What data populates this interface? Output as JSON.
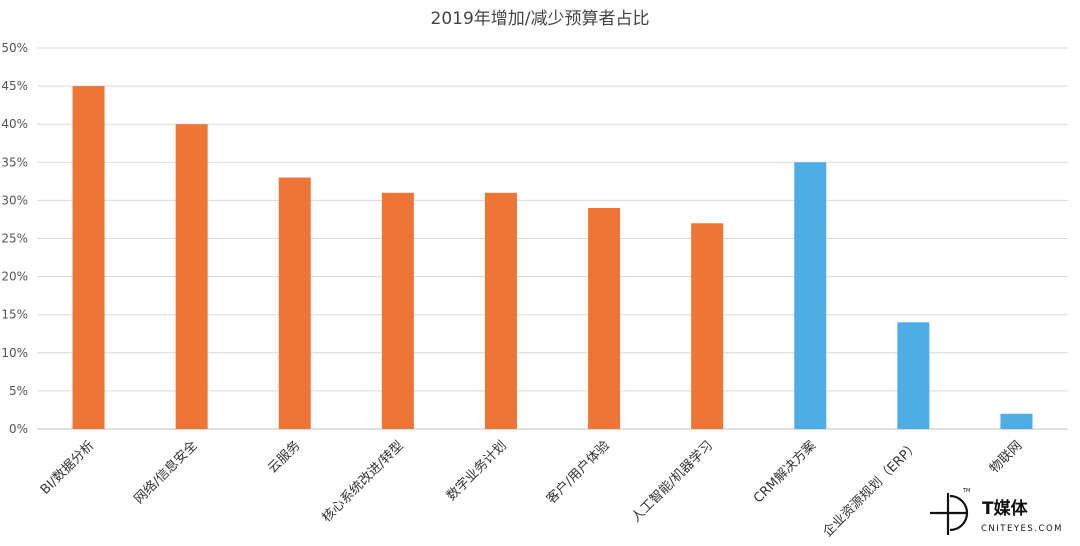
{
  "chart_data": {
    "type": "bar",
    "title": "2019年增加/减少预算者占比",
    "categories": [
      "BI/数据分析",
      "网络/信息安全",
      "云服务",
      "核心系统改进/转型",
      "数字业务计划",
      "客户/用户体验",
      "人工智能/机器学习",
      "CRM解决方案",
      "企业资源规划（ERP）",
      "物联网"
    ],
    "values": [
      45,
      40,
      33,
      31,
      31,
      29,
      27,
      35,
      14,
      2
    ],
    "bar_colors": [
      "#ed7536",
      "#ed7536",
      "#ed7536",
      "#ed7536",
      "#ed7536",
      "#ed7536",
      "#ed7536",
      "#4fade6",
      "#4fade6",
      "#4fade6"
    ],
    "ylim": [
      0,
      50
    ],
    "yticks": [
      0,
      5,
      10,
      15,
      20,
      25,
      30,
      35,
      40,
      45,
      50
    ],
    "ytick_labels": [
      "0%",
      "5%",
      "10%",
      "15%",
      "20%",
      "25%",
      "30%",
      "35%",
      "40%",
      "45%",
      "50%"
    ],
    "grid": true,
    "legend": "none"
  },
  "watermark": {
    "brand": "T媒体",
    "site": "CNITEYES.COM",
    "tm": "TM"
  }
}
